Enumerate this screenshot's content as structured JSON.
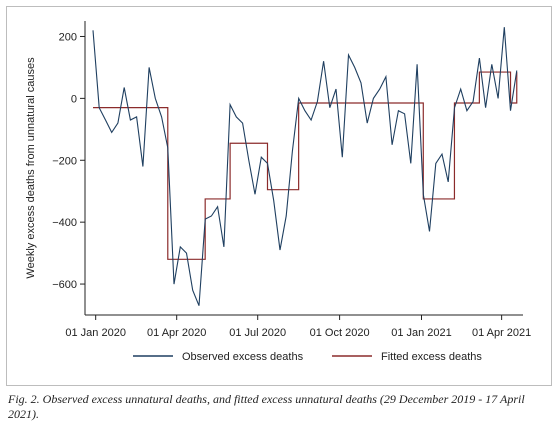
{
  "chart_data": {
    "type": "line",
    "ylabel": "Weekly excess deaths from unnatural causes",
    "xlabel": "",
    "ylim": [
      -700,
      250
    ],
    "yticks": [
      200,
      0,
      -200,
      -400,
      -600
    ],
    "xlim": [
      "2019-12-20",
      "2021-04-25"
    ],
    "xticks": [
      {
        "date": "2020-01-01",
        "label": "01 Jan 2020"
      },
      {
        "date": "2020-04-01",
        "label": "01 Apr 2020"
      },
      {
        "date": "2020-07-01",
        "label": "01 Jul 2020"
      },
      {
        "date": "2020-10-01",
        "label": "01 Oct 2020"
      },
      {
        "date": "2021-01-01",
        "label": "01 Jan 2021"
      },
      {
        "date": "2021-04-01",
        "label": "01 Apr 2021"
      }
    ],
    "grid": false,
    "legend_position": "bottom",
    "series": [
      {
        "name": "Observed excess deaths",
        "color": "#1f3f60",
        "x": [
          "2019-12-29",
          "2020-01-05",
          "2020-01-12",
          "2020-01-19",
          "2020-01-26",
          "2020-02-02",
          "2020-02-09",
          "2020-02-16",
          "2020-02-23",
          "2020-03-01",
          "2020-03-08",
          "2020-03-15",
          "2020-03-22",
          "2020-03-29",
          "2020-04-05",
          "2020-04-12",
          "2020-04-19",
          "2020-04-26",
          "2020-05-03",
          "2020-05-10",
          "2020-05-17",
          "2020-05-24",
          "2020-05-31",
          "2020-06-07",
          "2020-06-14",
          "2020-06-21",
          "2020-06-28",
          "2020-07-05",
          "2020-07-12",
          "2020-07-19",
          "2020-07-26",
          "2020-08-02",
          "2020-08-09",
          "2020-08-16",
          "2020-08-23",
          "2020-08-30",
          "2020-09-06",
          "2020-09-13",
          "2020-09-20",
          "2020-09-27",
          "2020-10-04",
          "2020-10-11",
          "2020-10-18",
          "2020-10-25",
          "2020-11-01",
          "2020-11-08",
          "2020-11-15",
          "2020-11-22",
          "2020-11-29",
          "2020-12-06",
          "2020-12-13",
          "2020-12-20",
          "2020-12-27",
          "2021-01-03",
          "2021-01-10",
          "2021-01-17",
          "2021-01-24",
          "2021-01-31",
          "2021-02-07",
          "2021-02-14",
          "2021-02-21",
          "2021-02-28",
          "2021-03-07",
          "2021-03-14",
          "2021-03-21",
          "2021-03-28",
          "2021-04-04",
          "2021-04-11",
          "2021-04-18"
        ],
        "values": [
          220,
          -30,
          -70,
          -110,
          -80,
          35,
          -70,
          -60,
          -220,
          100,
          0,
          -60,
          -160,
          -600,
          -480,
          -500,
          -620,
          -670,
          -390,
          -380,
          -350,
          -480,
          -20,
          -60,
          -80,
          -200,
          -310,
          -190,
          -210,
          -330,
          -490,
          -380,
          -170,
          0,
          -40,
          -70,
          -10,
          120,
          -30,
          30,
          -190,
          140,
          100,
          50,
          -80,
          0,
          30,
          70,
          -150,
          -40,
          -50,
          -210,
          110,
          -310,
          -430,
          -210,
          -180,
          -270,
          -30,
          30,
          -40,
          -10,
          130,
          -30,
          110,
          0,
          230,
          -40,
          90
        ]
      },
      {
        "name": "Fitted excess deaths",
        "color": "#8b2b2b",
        "x": [
          "2019-12-29",
          "2020-01-05",
          "2020-01-12",
          "2020-01-19",
          "2020-01-26",
          "2020-02-02",
          "2020-02-09",
          "2020-02-16",
          "2020-02-23",
          "2020-03-01",
          "2020-03-08",
          "2020-03-15",
          "2020-03-22",
          "2020-03-29",
          "2020-04-05",
          "2020-04-12",
          "2020-04-19",
          "2020-04-26",
          "2020-05-03",
          "2020-05-10",
          "2020-05-17",
          "2020-05-24",
          "2020-05-31",
          "2020-06-07",
          "2020-06-14",
          "2020-06-21",
          "2020-06-28",
          "2020-07-05",
          "2020-07-12",
          "2020-07-19",
          "2020-07-26",
          "2020-08-02",
          "2020-08-09",
          "2020-08-16",
          "2020-08-23",
          "2020-08-30",
          "2020-09-06",
          "2020-09-13",
          "2020-09-20",
          "2020-09-27",
          "2020-10-04",
          "2020-10-11",
          "2020-10-18",
          "2020-10-25",
          "2020-11-01",
          "2020-11-08",
          "2020-11-15",
          "2020-11-22",
          "2020-11-29",
          "2020-12-06",
          "2020-12-13",
          "2020-12-20",
          "2020-12-27",
          "2021-01-03",
          "2021-01-10",
          "2021-01-17",
          "2021-01-24",
          "2021-01-31",
          "2021-02-07",
          "2021-02-14",
          "2021-02-21",
          "2021-02-28",
          "2021-03-07",
          "2021-03-14",
          "2021-03-21",
          "2021-03-28",
          "2021-04-04",
          "2021-04-11",
          "2021-04-18"
        ],
        "values": [
          -30,
          -30,
          -30,
          -30,
          -30,
          -30,
          -30,
          -30,
          -30,
          -30,
          -30,
          -30,
          -520,
          -520,
          -520,
          -520,
          -520,
          -520,
          -325,
          -325,
          -325,
          -325,
          -145,
          -145,
          -145,
          -145,
          -145,
          -145,
          -295,
          -295,
          -295,
          -295,
          -295,
          -15,
          -15,
          -15,
          -15,
          -15,
          -15,
          -15,
          -15,
          -15,
          -15,
          -15,
          -15,
          -15,
          -15,
          -15,
          -15,
          -15,
          -15,
          -15,
          -15,
          -325,
          -325,
          -325,
          -325,
          -325,
          -15,
          -15,
          -15,
          -15,
          85,
          85,
          85,
          85,
          85,
          -15,
          85
        ]
      }
    ]
  },
  "caption": "Fig. 2. Observed excess unnatural deaths, and fitted excess unnatural deaths (29 December 2019 - 17 April 2021)."
}
